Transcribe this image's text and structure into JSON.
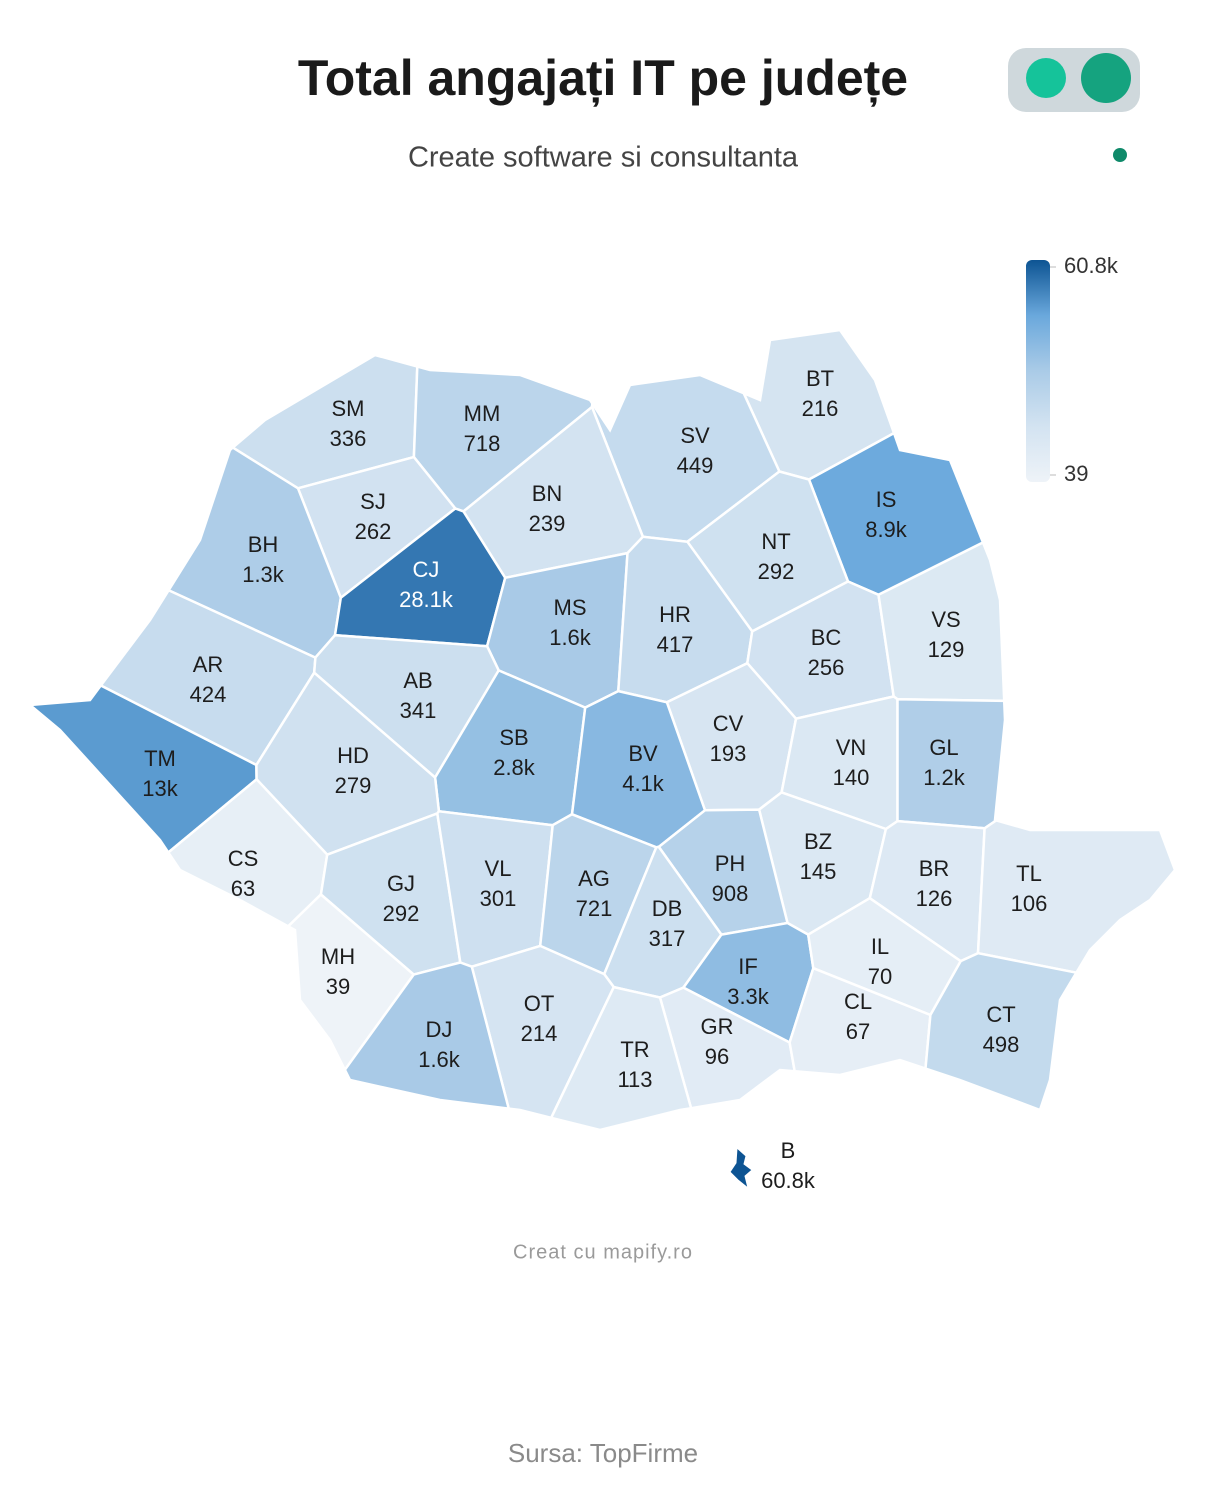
{
  "chart_data": {
    "type": "choropleth",
    "title": "Total angajați IT pe județe",
    "subtitle": "Create software si consultanta",
    "categories": [
      "SM",
      "MM",
      "BT",
      "SV",
      "SJ",
      "BN",
      "IS",
      "BH",
      "CJ",
      "NT",
      "MS",
      "HR",
      "BC",
      "VS",
      "AR",
      "AB",
      "CV",
      "SB",
      "BV",
      "VN",
      "GL",
      "TM",
      "HD",
      "CS",
      "BZ",
      "PH",
      "BR",
      "TL",
      "GJ",
      "VL",
      "AG",
      "DB",
      "MH",
      "IF",
      "IL",
      "OT",
      "DJ",
      "GR",
      "CL",
      "CT",
      "TR",
      "B"
    ],
    "values": [
      336,
      718,
      216,
      449,
      262,
      239,
      8900,
      1300,
      28100,
      292,
      1600,
      417,
      256,
      129,
      424,
      341,
      193,
      2800,
      4100,
      140,
      1200,
      13000,
      279,
      63,
      145,
      908,
      126,
      106,
      292,
      301,
      721,
      317,
      39,
      3300,
      70,
      214,
      1600,
      96,
      67,
      498,
      113,
      60800
    ],
    "value_labels": [
      "336",
      "718",
      "216",
      "449",
      "262",
      "239",
      "8.9k",
      "1.3k",
      "28.1k",
      "292",
      "1.6k",
      "417",
      "256",
      "129",
      "424",
      "341",
      "193",
      "2.8k",
      "4.1k",
      "140",
      "1.2k",
      "13k",
      "279",
      "63",
      "145",
      "908",
      "126",
      "106",
      "292",
      "301",
      "721",
      "317",
      "39",
      "3.3k",
      "70",
      "214",
      "1.6k",
      "96",
      "67",
      "498",
      "113",
      "60.8k"
    ],
    "colorscale": [
      "#eef3f8",
      "#d3e3f1",
      "#aacbe7",
      "#6aa8dc",
      "#0d5493"
    ],
    "colorbar_ticks": [
      {
        "value": 60800,
        "label": "60.8k"
      },
      {
        "value": 39,
        "label": "39"
      }
    ],
    "footer_credit": "Creat cu mapify.ro",
    "source": "Sursa: TopFirme"
  }
}
